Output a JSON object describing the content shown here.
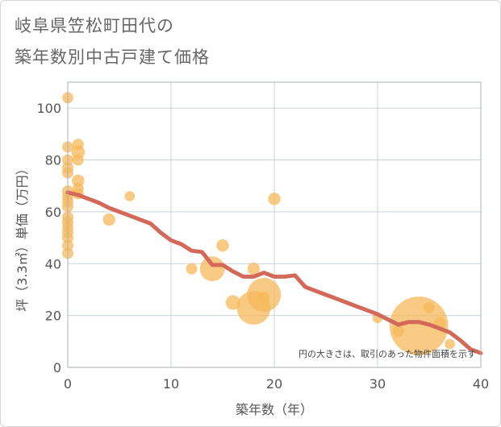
{
  "title_line1": "岐阜県笠松町田代の",
  "title_line2": "築年数別中古戸建て価格",
  "chart_data": {
    "type": "scatter",
    "title": "岐阜県笠松町田代の築年数別中古戸建て価格",
    "xlabel": "築年数（年）",
    "ylabel": "坪（3.3㎡）単価（万円）",
    "xlim": [
      0,
      40
    ],
    "ylim": [
      0,
      110
    ],
    "xticks": [
      0,
      10,
      20,
      30,
      40
    ],
    "yticks": [
      0,
      20,
      40,
      60,
      80,
      100
    ],
    "note": "円の大きさは、取引のあった物件面積を示す",
    "colors": {
      "bubble": "#f5b85a",
      "trend": "#d4695a",
      "grid": "#c9d3dc",
      "plot_border": "#aab3bc"
    },
    "bubbles": [
      {
        "x": 0,
        "y": 104,
        "s": 1
      },
      {
        "x": 0,
        "y": 85,
        "s": 1
      },
      {
        "x": 0,
        "y": 80,
        "s": 1
      },
      {
        "x": 0,
        "y": 77,
        "s": 1
      },
      {
        "x": 0,
        "y": 75,
        "s": 1
      },
      {
        "x": 0,
        "y": 68,
        "s": 1
      },
      {
        "x": 0,
        "y": 66,
        "s": 1
      },
      {
        "x": 0,
        "y": 64,
        "s": 1
      },
      {
        "x": 0,
        "y": 62,
        "s": 1
      },
      {
        "x": 0,
        "y": 58,
        "s": 1
      },
      {
        "x": 0,
        "y": 56,
        "s": 1
      },
      {
        "x": 0,
        "y": 54,
        "s": 1
      },
      {
        "x": 0,
        "y": 52,
        "s": 1
      },
      {
        "x": 0,
        "y": 50,
        "s": 1
      },
      {
        "x": 0,
        "y": 47,
        "s": 1
      },
      {
        "x": 0,
        "y": 44,
        "s": 1
      },
      {
        "x": 1,
        "y": 86,
        "s": 1
      },
      {
        "x": 1,
        "y": 83,
        "s": 1.2
      },
      {
        "x": 1,
        "y": 80,
        "s": 1
      },
      {
        "x": 1,
        "y": 72,
        "s": 1.1
      },
      {
        "x": 1,
        "y": 69,
        "s": 1
      },
      {
        "x": 1,
        "y": 67,
        "s": 1
      },
      {
        "x": 4,
        "y": 57,
        "s": 1.1
      },
      {
        "x": 6,
        "y": 66,
        "s": 0.9
      },
      {
        "x": 12,
        "y": 38,
        "s": 1
      },
      {
        "x": 14,
        "y": 38,
        "s": 2.2
      },
      {
        "x": 15,
        "y": 47,
        "s": 1.1
      },
      {
        "x": 16,
        "y": 25,
        "s": 1.3
      },
      {
        "x": 18,
        "y": 38,
        "s": 1.1
      },
      {
        "x": 18,
        "y": 23,
        "s": 3.0
      },
      {
        "x": 19,
        "y": 28,
        "s": 3.0
      },
      {
        "x": 19,
        "y": 27,
        "s": 1
      },
      {
        "x": 20,
        "y": 65,
        "s": 1.1
      },
      {
        "x": 30,
        "y": 19,
        "s": 0.9
      },
      {
        "x": 32,
        "y": 14,
        "s": 1
      },
      {
        "x": 34,
        "y": 16,
        "s": 5.2
      },
      {
        "x": 35,
        "y": 23,
        "s": 1
      },
      {
        "x": 36,
        "y": 17,
        "s": 1.1
      },
      {
        "x": 37,
        "y": 9,
        "s": 0.9
      }
    ],
    "trend": {
      "x": [
        0,
        1,
        2,
        3,
        4,
        5,
        6,
        7,
        8,
        9,
        10,
        11,
        12,
        13,
        14,
        15,
        16,
        17,
        18,
        19,
        20,
        21,
        22,
        23,
        24,
        25,
        26,
        27,
        28,
        29,
        30,
        31,
        32,
        33,
        34,
        35,
        36,
        37,
        38,
        39,
        40
      ],
      "y": [
        67.5,
        66.5,
        65,
        63.5,
        61.5,
        60,
        58.5,
        57,
        55.5,
        52,
        49,
        47.5,
        45,
        44.5,
        39.5,
        39.5,
        37,
        35,
        35,
        36.5,
        35,
        35,
        35.5,
        31,
        29.5,
        28,
        26.5,
        25,
        23.5,
        22,
        20.5,
        18.5,
        16.5,
        17.5,
        17.5,
        16.5,
        15,
        13.5,
        10.5,
        7,
        5.5
      ]
    }
  }
}
